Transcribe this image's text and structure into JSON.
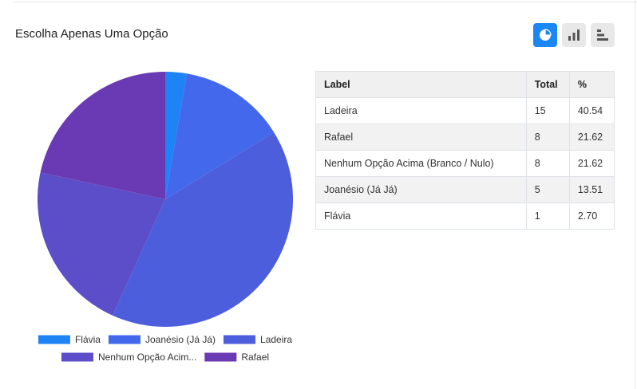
{
  "question": {
    "title": "Escolha Apenas Uma Opção"
  },
  "view_buttons": [
    {
      "name": "pie-view-button",
      "icon": "pie-chart-icon",
      "active": true
    },
    {
      "name": "bar-view-button",
      "icon": "bar-chart-icon",
      "active": false
    },
    {
      "name": "hbar-view-button",
      "icon": "horizontal-bar-chart-icon",
      "active": false
    }
  ],
  "colors": {
    "accent": "#1b87f5",
    "slices": [
      "#1e84f6",
      "#4368ec",
      "#4d5edc",
      "#5c4ec8",
      "#6a3ab4"
    ]
  },
  "table": {
    "headers": [
      "Label",
      "Total",
      "%"
    ],
    "rows": [
      [
        "Ladeira",
        "15",
        "40.54"
      ],
      [
        "Rafael",
        "8",
        "21.62"
      ],
      [
        "Nenhum Opção Acima (Branco / Nulo)",
        "8",
        "21.62"
      ],
      [
        "Joanésio (Já Já)",
        "5",
        "13.51"
      ],
      [
        "Flávia",
        "1",
        "2.70"
      ]
    ]
  },
  "chart_data": {
    "type": "pie",
    "legend_position": "bottom",
    "slices": [
      {
        "label": "Flávia",
        "legend_label": "Flávia",
        "value": 1
      },
      {
        "label": "Joanésio (Já Já)",
        "legend_label": "Joanésio (Já Já)",
        "value": 5
      },
      {
        "label": "Ladeira",
        "legend_label": "Ladeira",
        "value": 15
      },
      {
        "label": "Nenhum Opção Acima (Branco / Nulo)",
        "legend_label": "Nenhum Opção Acim...",
        "value": 8
      },
      {
        "label": "Rafael",
        "legend_label": "Rafael",
        "value": 8
      }
    ]
  }
}
